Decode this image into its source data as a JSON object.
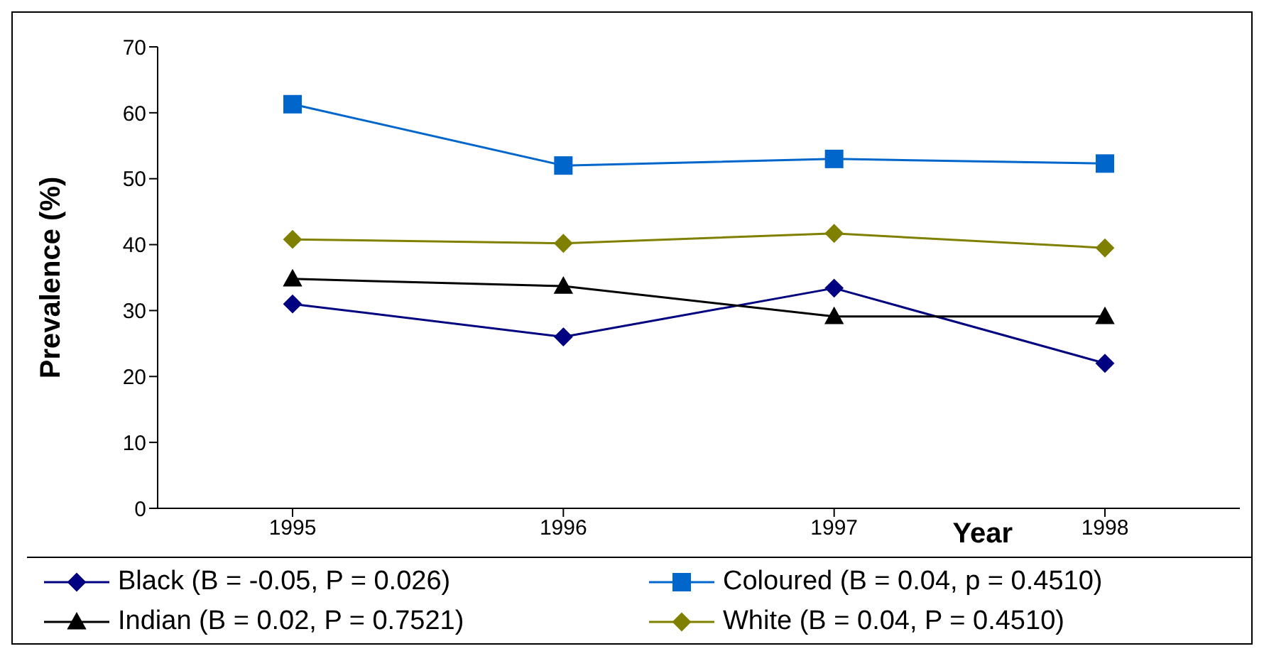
{
  "chart_data": {
    "type": "line",
    "xlabel": "Year",
    "ylabel": "Prevalence (%)",
    "categories": [
      "1995",
      "1996",
      "1997",
      "1998"
    ],
    "series": [
      {
        "name": "Black (B = -0.05, P = 0.026)",
        "color": "#000080",
        "marker": "diamond",
        "values": [
          31,
          26,
          33.4,
          22
        ]
      },
      {
        "name": "Coloured (B = 0.04, p = 0.4510)",
        "color": "#0066cc",
        "marker": "square",
        "values": [
          61.3,
          52,
          53,
          52.3
        ]
      },
      {
        "name": "Indian (B = 0.02, P = 0.7521)",
        "color": "#000000",
        "marker": "triangle",
        "values": [
          34.8,
          33.7,
          29.1,
          29.1
        ]
      },
      {
        "name": "White (B = 0.04, P = 0.4510)",
        "color": "#808000",
        "marker": "diamond",
        "values": [
          40.8,
          40.2,
          41.7,
          39.5
        ]
      }
    ],
    "ylim": [
      0,
      70
    ],
    "yticks": [
      0,
      10,
      20,
      30,
      40,
      50,
      60,
      70
    ],
    "grid": false,
    "legend": "bottom"
  }
}
